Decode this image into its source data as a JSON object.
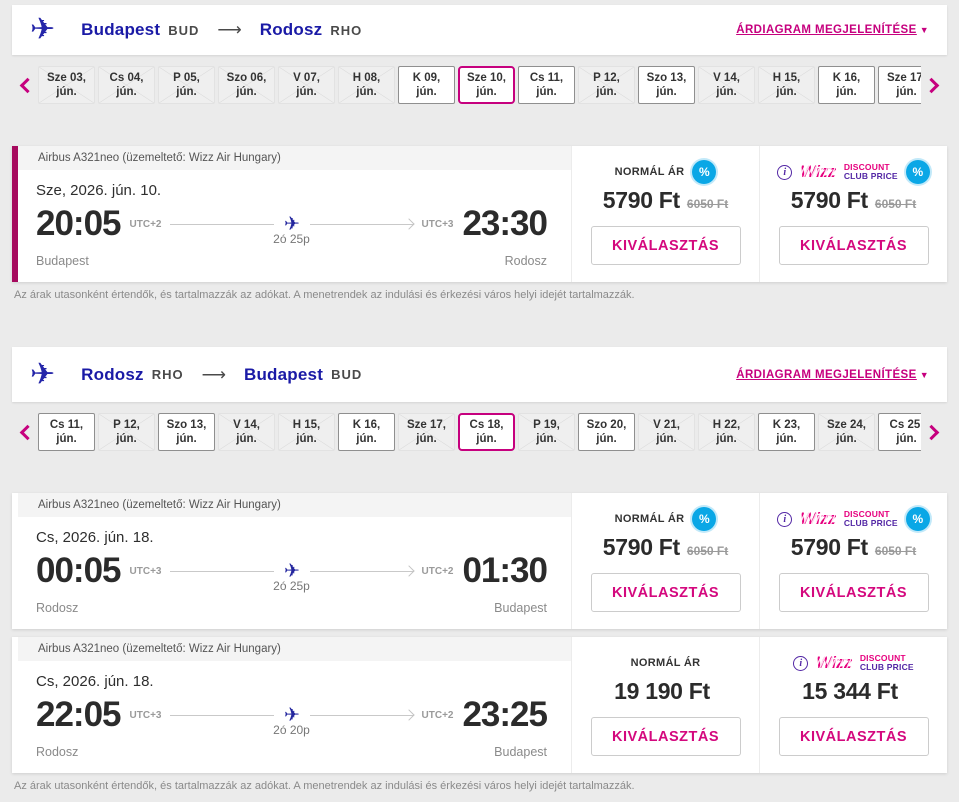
{
  "colors": {
    "magenta": "#C6007E",
    "navy": "#2526A9",
    "cyan_badge": "#0AA7E6",
    "selected_bar": "#A60A5E"
  },
  "sections": [
    {
      "header": {
        "from": "Budapest",
        "from_code": "BUD",
        "arrow": "⟶",
        "to": "Rodosz",
        "to_code": "RHO",
        "chart_link": "ÁRDIAGRAM MEGJELENÍTÉSE",
        "caret": "▼"
      },
      "dates": [
        {
          "line1": "Sze 03,",
          "line2": "jún.",
          "state": "x"
        },
        {
          "line1": "Cs 04,",
          "line2": "jún.",
          "state": "x"
        },
        {
          "line1": "P 05,",
          "line2": "jún.",
          "state": "x"
        },
        {
          "line1": "Szo 06,",
          "line2": "jún.",
          "state": "x"
        },
        {
          "line1": "V 07,",
          "line2": "jún.",
          "state": "x"
        },
        {
          "line1": "H 08,",
          "line2": "jún.",
          "state": "x"
        },
        {
          "line1": "K 09,",
          "line2": "jún.",
          "state": "open"
        },
        {
          "line1": "Sze 10,",
          "line2": "jún.",
          "state": "sel"
        },
        {
          "line1": "Cs 11,",
          "line2": "jún.",
          "state": "open"
        },
        {
          "line1": "P 12,",
          "line2": "jún.",
          "state": "x"
        },
        {
          "line1": "Szo 13,",
          "line2": "jún.",
          "state": "open"
        },
        {
          "line1": "V 14,",
          "line2": "jún.",
          "state": "x"
        },
        {
          "line1": "H 15,",
          "line2": "jún.",
          "state": "x"
        },
        {
          "line1": "K 16,",
          "line2": "jún.",
          "state": "open"
        },
        {
          "line1": "Sze 17,",
          "line2": "jún.",
          "state": "open"
        }
      ],
      "flights": [
        {
          "card_class": "selected",
          "aircraft": "Airbus A321neo (üzemeltető: Wizz Air Hungary)",
          "date": "Sze, 2026. jún. 10.",
          "dep": {
            "time": "20:05",
            "tz": "UTC+2",
            "city": "Budapest"
          },
          "arr": {
            "time": "23:30",
            "tz": "UTC+3",
            "city": "Rodosz"
          },
          "duration": "2ó 25p",
          "normal": {
            "label": "NORMÁL ÁR",
            "badge": "%",
            "badge_class": "",
            "price": "5790 Ft",
            "old_price": "6050 Ft",
            "button": "KIVÁLASZTÁS"
          },
          "club": {
            "info": "i",
            "wizz": "Wizz",
            "club_line1": "DISCOUNT",
            "club_line2": "CLUB PRICE",
            "badge": "%",
            "badge_class": "",
            "price": "5790 Ft",
            "old_price": "6050 Ft",
            "button": "KIVÁLASZTÁS"
          }
        }
      ],
      "disclaimer": "Az árak utasonként értendők, és tartalmazzák az adókat. A menetrendek az indulási és érkezési város helyi idejét tartalmazzák."
    },
    {
      "header": {
        "from": "Rodosz",
        "from_code": "RHO",
        "arrow": "⟶",
        "to": "Budapest",
        "to_code": "BUD",
        "chart_link": "ÁRDIAGRAM MEGJELENÍTÉSE",
        "caret": "▼"
      },
      "dates": [
        {
          "line1": "Cs 11,",
          "line2": "jún.",
          "state": "open"
        },
        {
          "line1": "P 12,",
          "line2": "jún.",
          "state": "x"
        },
        {
          "line1": "Szo 13,",
          "line2": "jún.",
          "state": "open"
        },
        {
          "line1": "V 14,",
          "line2": "jún.",
          "state": "x"
        },
        {
          "line1": "H 15,",
          "line2": "jún.",
          "state": "x"
        },
        {
          "line1": "K 16,",
          "line2": "jún.",
          "state": "open"
        },
        {
          "line1": "Sze 17,",
          "line2": "jún.",
          "state": "x"
        },
        {
          "line1": "Cs 18,",
          "line2": "jún.",
          "state": "sel"
        },
        {
          "line1": "P 19,",
          "line2": "jún.",
          "state": "x"
        },
        {
          "line1": "Szo 20,",
          "line2": "jún.",
          "state": "open"
        },
        {
          "line1": "V 21,",
          "line2": "jún.",
          "state": "x"
        },
        {
          "line1": "H 22,",
          "line2": "jún.",
          "state": "x"
        },
        {
          "line1": "K 23,",
          "line2": "jún.",
          "state": "open"
        },
        {
          "line1": "Sze 24,",
          "line2": "jún.",
          "state": "x"
        },
        {
          "line1": "Cs 25,",
          "line2": "jún.",
          "state": "open"
        }
      ],
      "flights": [
        {
          "card_class": "",
          "aircraft": "Airbus A321neo (üzemeltető: Wizz Air Hungary)",
          "date": "Cs, 2026. jún. 18.",
          "dep": {
            "time": "00:05",
            "tz": "UTC+3",
            "city": "Rodosz"
          },
          "arr": {
            "time": "01:30",
            "tz": "UTC+2",
            "city": "Budapest"
          },
          "duration": "2ó 25p",
          "normal": {
            "label": "NORMÁL ÁR",
            "badge": "%",
            "badge_class": "",
            "price": "5790 Ft",
            "old_price": "6050 Ft",
            "button": "KIVÁLASZTÁS"
          },
          "club": {
            "info": "i",
            "wizz": "Wizz",
            "club_line1": "DISCOUNT",
            "club_line2": "CLUB PRICE",
            "badge": "%",
            "badge_class": "",
            "price": "5790 Ft",
            "old_price": "6050 Ft",
            "button": "KIVÁLASZTÁS"
          }
        },
        {
          "card_class": "stack",
          "aircraft": "Airbus A321neo (üzemeltető: Wizz Air Hungary)",
          "date": "Cs, 2026. jún. 18.",
          "dep": {
            "time": "22:05",
            "tz": "UTC+3",
            "city": "Rodosz"
          },
          "arr": {
            "time": "23:25",
            "tz": "UTC+2",
            "city": "Budapest"
          },
          "duration": "2ó 20p",
          "normal": {
            "label": "NORMÁL ÁR",
            "badge": "%",
            "badge_class": "hid",
            "price": "19 190 Ft",
            "old_price": "",
            "button": "KIVÁLASZTÁS"
          },
          "club": {
            "info": "i",
            "wizz": "Wizz",
            "club_line1": "DISCOUNT",
            "club_line2": "CLUB PRICE",
            "badge": "%",
            "badge_class": "hid",
            "price": "15 344 Ft",
            "old_price": "",
            "button": "KIVÁLASZTÁS"
          }
        }
      ],
      "disclaimer": "Az árak utasonként értendők, és tartalmazzák az adókat. A menetrendek az indulási és érkezési város helyi idejét tartalmazzák."
    }
  ]
}
